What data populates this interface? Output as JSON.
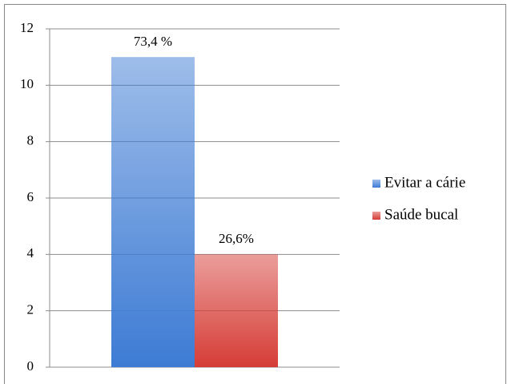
{
  "chart_data": {
    "type": "bar",
    "categories": [
      null
    ],
    "series": [
      {
        "name": "Evitar a cárie",
        "color": "#3d7bd4",
        "values": [
          11
        ],
        "value_labels": [
          "73,4 %"
        ]
      },
      {
        "name": "Saúde bucal",
        "color": "#d63c36",
        "values": [
          4
        ],
        "value_labels": [
          "26,6%"
        ]
      }
    ],
    "ylim": [
      0,
      12
    ],
    "yticks": [
      0,
      2,
      4,
      6,
      8,
      10,
      12
    ],
    "grid": true,
    "legend": "right"
  }
}
